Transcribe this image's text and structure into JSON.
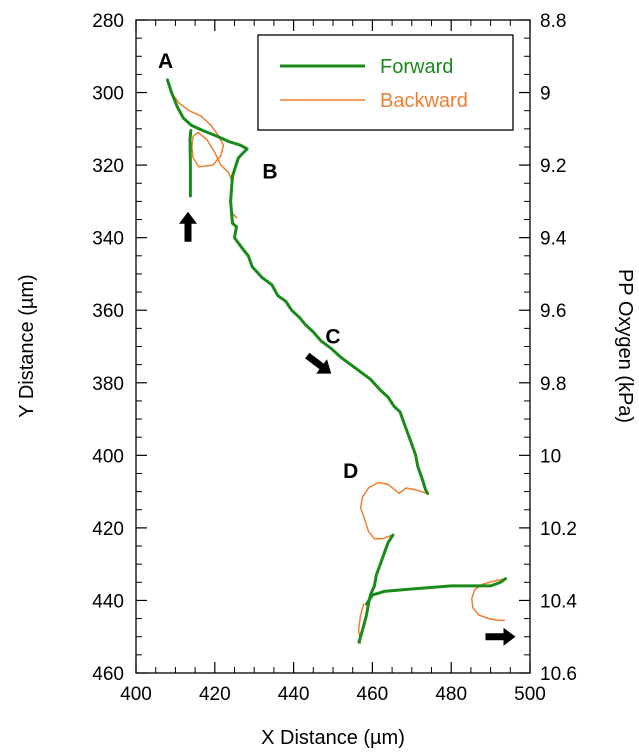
{
  "chart_data": {
    "type": "line",
    "xlabel": "X Distance (µm)",
    "ylabel": "Y Distance (µm)",
    "y2label": "PP Oxygen (kPa)",
    "xlim": [
      400,
      500
    ],
    "ylim": [
      280,
      460
    ],
    "y_inverted": true,
    "y2lim": [
      8.8,
      10.6
    ],
    "xticks": [
      "400",
      "420",
      "440",
      "460",
      "480",
      "500"
    ],
    "yticks": [
      "280",
      "300",
      "320",
      "340",
      "360",
      "380",
      "400",
      "420",
      "440",
      "460"
    ],
    "y2ticks": [
      "8.8",
      "9",
      "9.2",
      "9.4",
      "9.6",
      "9.8",
      "10",
      "10.2",
      "10.4",
      "10.6"
    ],
    "grid": false,
    "legend": {
      "position": "top-right"
    },
    "series": [
      {
        "name": "Forward",
        "color": "#1a8a1a",
        "segments": [
          [
            [
              413.8,
              328.5
            ],
            [
              413.8,
              320
            ],
            [
              413.7,
              313
            ],
            [
              413.9,
              310.5
            ]
          ],
          [
            [
              408.0,
              296.5
            ],
            [
              409,
              300
            ],
            [
              410.5,
              304
            ],
            [
              412,
              307
            ],
            [
              414,
              309
            ],
            [
              417,
              310.5
            ],
            [
              420.5,
              312
            ],
            [
              423.5,
              313.5
            ],
            [
              426.5,
              314.5
            ],
            [
              428.2,
              315.5
            ],
            [
              426,
              318
            ],
            [
              424.5,
              323
            ],
            [
              424,
              330
            ],
            [
              424.5,
              336
            ],
            [
              425.5,
              337
            ],
            [
              425,
              340
            ],
            [
              427,
              343
            ],
            [
              428.5,
              345
            ],
            [
              429.5,
              348
            ],
            [
              432,
              351
            ],
            [
              434.5,
              353
            ],
            [
              436,
              356
            ],
            [
              438,
              357.5
            ],
            [
              439.5,
              360
            ],
            [
              441.5,
              362
            ],
            [
              443,
              364
            ],
            [
              445,
              366
            ],
            [
              447,
              368.5
            ],
            [
              449.5,
              370.5
            ],
            [
              452,
              373
            ],
            [
              454.5,
              375
            ],
            [
              457,
              377
            ],
            [
              459.5,
              379
            ],
            [
              462,
              382
            ],
            [
              464,
              384
            ],
            [
              465.5,
              386.5
            ],
            [
              467,
              388
            ],
            [
              468,
              391
            ],
            [
              469,
              394
            ],
            [
              470,
              397
            ],
            [
              471,
              400
            ],
            [
              471.5,
              403
            ],
            [
              472.5,
              406
            ],
            [
              473.5,
              409.5
            ],
            [
              474,
              410.5
            ]
          ],
          [
            [
              465.2,
              422
            ],
            [
              464,
              424
            ],
            [
              463,
              427
            ],
            [
              462,
              430
            ],
            [
              461,
              433
            ],
            [
              460.5,
              436
            ],
            [
              459.5,
              438.5
            ],
            [
              459,
              441
            ],
            [
              458.5,
              444
            ],
            [
              457.8,
              447
            ],
            [
              457,
              450
            ],
            [
              456.6,
              451.5
            ]
          ],
          [
            [
              458.5,
              441
            ],
            [
              460,
              438.5
            ],
            [
              463,
              437.5
            ],
            [
              468,
              437
            ],
            [
              474,
              436.5
            ],
            [
              480,
              436
            ],
            [
              486,
              436
            ],
            [
              490,
              436
            ],
            [
              492.5,
              435
            ],
            [
              493.8,
              434
            ]
          ]
        ]
      },
      {
        "name": "Backward",
        "color": "#ee7f30",
        "segments": [
          [
            [
              407.8,
              296.5
            ],
            [
              409,
              300
            ],
            [
              411,
              303
            ],
            [
              413.5,
              305
            ],
            [
              416.5,
              306.5
            ],
            [
              419,
              309
            ],
            [
              421,
              312
            ],
            [
              422.2,
              314.5
            ],
            [
              421.5,
              317.5
            ],
            [
              419.5,
              320
            ],
            [
              416,
              320.5
            ],
            [
              414.5,
              318
            ],
            [
              414.2,
              315
            ],
            [
              414.5,
              312
            ],
            [
              415.8,
              311
            ],
            [
              418,
              313
            ],
            [
              420,
              316.5
            ],
            [
              421.5,
              320
            ],
            [
              423.5,
              322
            ],
            [
              424.5,
              325
            ],
            [
              424,
              329
            ],
            [
              424.2,
              333
            ],
            [
              425.5,
              334.5
            ]
          ],
          [
            [
              466.8,
              410.5
            ],
            [
              468.5,
              409
            ],
            [
              471,
              409.5
            ],
            [
              473.8,
              410.5
            ]
          ],
          [
            [
              466.8,
              410.5
            ],
            [
              464,
              408
            ],
            [
              461.5,
              407.5
            ],
            [
              459,
              409
            ],
            [
              457.5,
              411.5
            ],
            [
              457,
              414.5
            ],
            [
              458,
              417.5
            ],
            [
              459,
              421
            ],
            [
              460.5,
              423
            ],
            [
              462.5,
              423
            ],
            [
              465,
              422
            ]
          ],
          [
            [
              457.0,
              451.8
            ],
            [
              456.5,
              448
            ],
            [
              457,
              444
            ],
            [
              457.8,
              441
            ]
          ],
          [
            [
              493.8,
              434
            ],
            [
              491.5,
              434.5
            ],
            [
              488,
              435.5
            ],
            [
              486,
              437
            ],
            [
              485.2,
              439.5
            ],
            [
              485.5,
              442
            ],
            [
              487,
              444
            ],
            [
              489.5,
              445
            ],
            [
              492,
              445.5
            ],
            [
              493.5,
              445.5
            ]
          ]
        ]
      }
    ],
    "annotations": [
      {
        "text": "A",
        "x": 407.5,
        "y": 291
      },
      {
        "text": "B",
        "x": 434,
        "y": 321.5
      },
      {
        "text": "C",
        "x": 450,
        "y": 367
      },
      {
        "text": "D",
        "x": 454.5,
        "y": 404
      }
    ],
    "arrows": [
      {
        "direction": "up",
        "x": 413.2,
        "y": 337
      },
      {
        "direction": "down-right",
        "x": 446.5,
        "y": 375
      },
      {
        "direction": "right",
        "x": 492.5,
        "y": 450
      }
    ]
  }
}
